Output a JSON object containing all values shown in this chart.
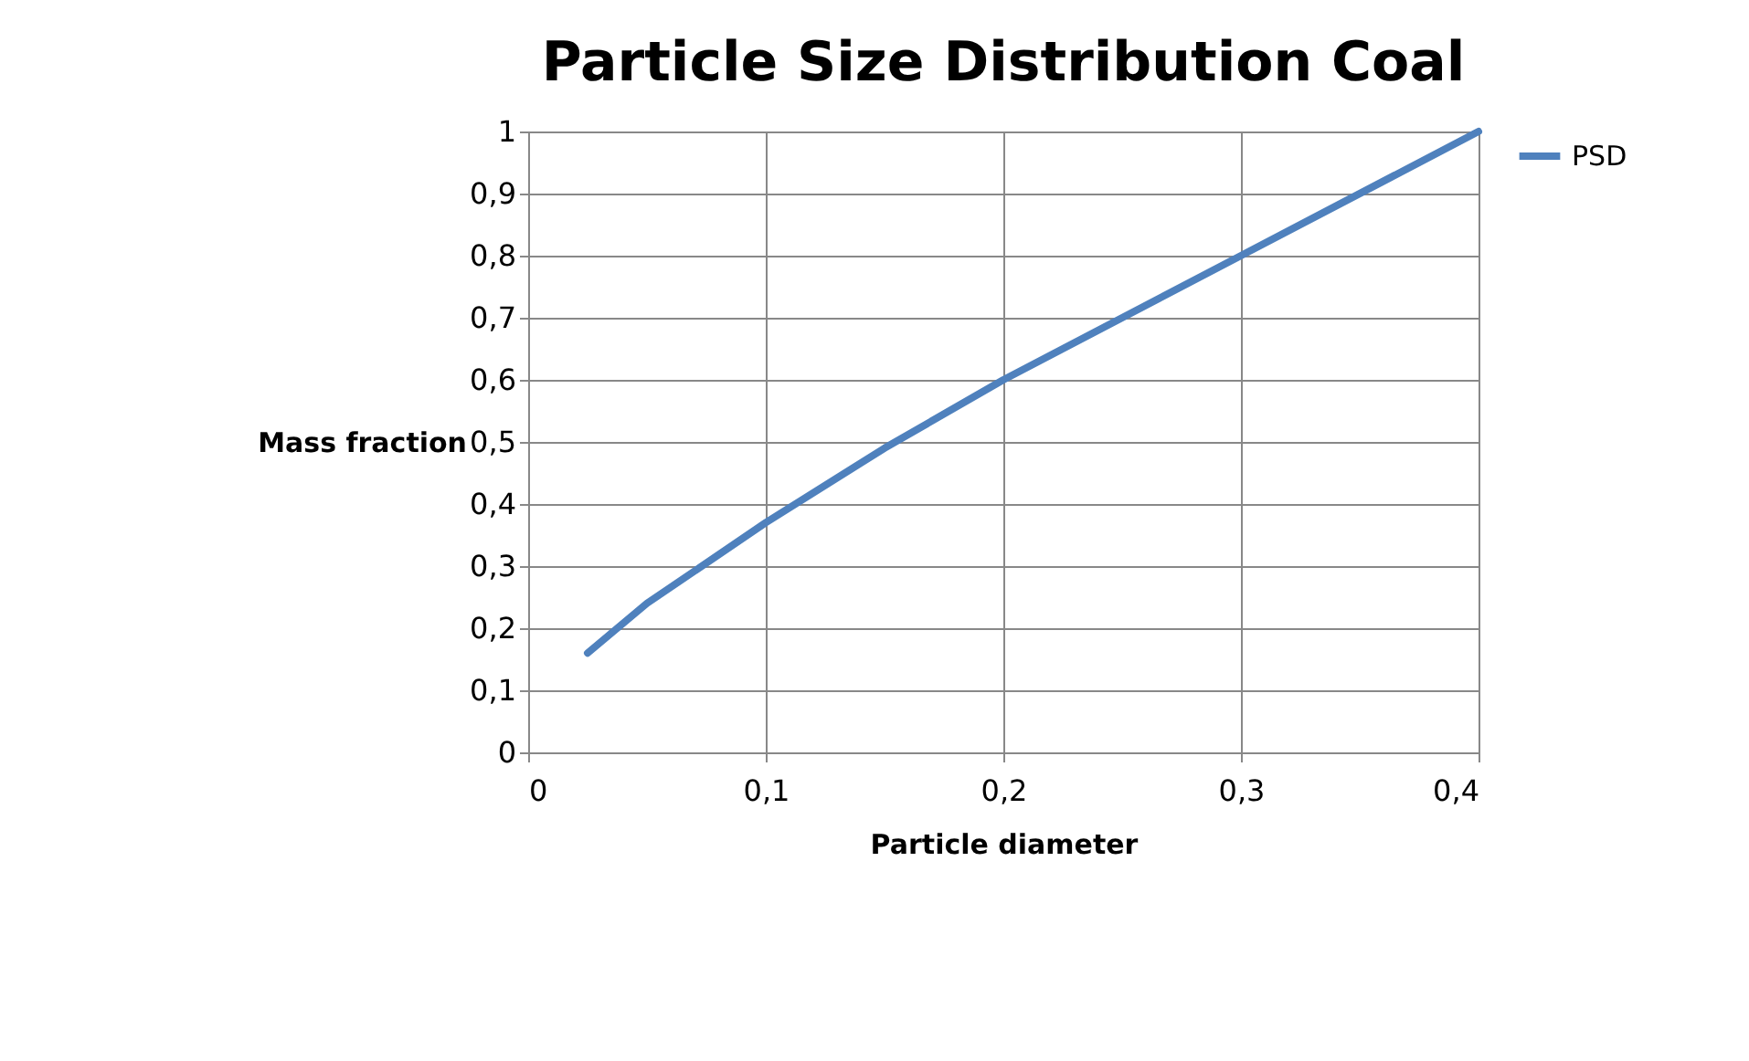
{
  "chart_data": {
    "type": "line",
    "title": "Particle Size Distribution Coal",
    "xlabel": "Particle diameter",
    "ylabel": "Mass fraction",
    "x": [
      0.025,
      0.05,
      0.1,
      0.15,
      0.2,
      0.3,
      0.4
    ],
    "series": [
      {
        "name": "PSD",
        "color": "#4f81bd",
        "values": [
          0.16,
          0.24,
          0.37,
          0.49,
          0.6,
          0.8,
          1.0
        ]
      }
    ],
    "xlim": [
      0,
      0.4
    ],
    "ylim": [
      0,
      1
    ],
    "xticks": [
      0,
      {
        "value": 0.1,
        "label": "0,1"
      },
      {
        "value": 0.2,
        "label": "0,2"
      },
      {
        "value": 0.3,
        "label": "0,3"
      },
      {
        "value": 0.4,
        "label": "0,4"
      }
    ],
    "yticks": [
      0,
      {
        "value": 0.1,
        "label": "0,1"
      },
      {
        "value": 0.2,
        "label": "0,2"
      },
      {
        "value": 0.3,
        "label": "0,3"
      },
      {
        "value": 0.4,
        "label": "0,4"
      },
      {
        "value": 0.5,
        "label": "0,5"
      },
      {
        "value": 0.6,
        "label": "0,6"
      },
      {
        "value": 0.7,
        "label": "0,7"
      },
      {
        "value": 0.8,
        "label": "0,8"
      },
      {
        "value": 0.9,
        "label": "0,9"
      },
      1
    ],
    "grid": true,
    "legend": "right",
    "marker": "none",
    "line_style": "solid"
  }
}
